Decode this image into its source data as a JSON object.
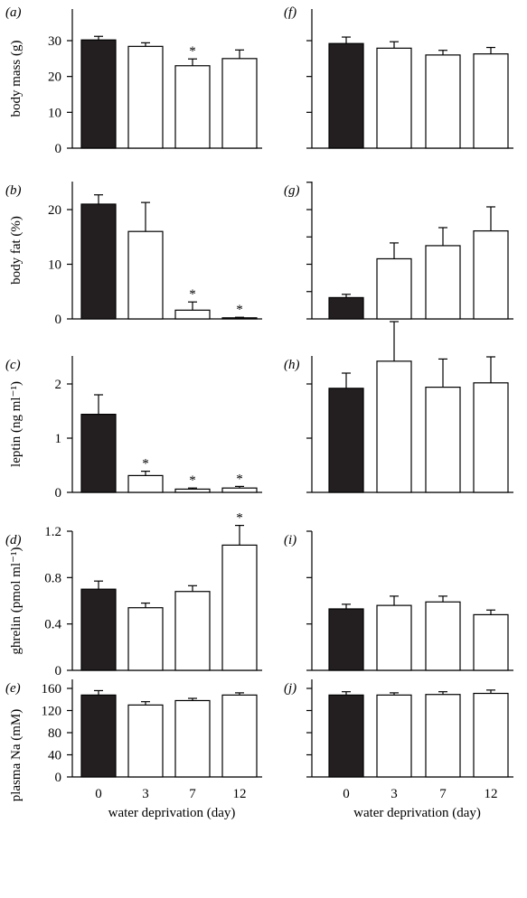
{
  "figure": {
    "xlabel": "water deprivation (day)",
    "categories": [
      "0",
      "3",
      "7",
      "12"
    ],
    "colors": {
      "control": "#231f20",
      "treated": "#ffffff",
      "ink": "#000000"
    }
  },
  "chart_data": [
    {
      "panel": "(a)",
      "type": "bar",
      "ylabel": "body mass (g)",
      "ylim": [
        0,
        35
      ],
      "yticks": [
        0,
        10,
        20,
        30
      ],
      "show_tick_labels": true,
      "categories": [
        "0",
        "3",
        "7",
        "12"
      ],
      "values": [
        30.2,
        28.4,
        23.0,
        25.0
      ],
      "errors": [
        1.0,
        1.0,
        1.9,
        2.4
      ],
      "significant": [
        false,
        false,
        true,
        false
      ]
    },
    {
      "panel": "(f)",
      "type": "bar",
      "ylabel": "",
      "ylim": [
        0,
        35
      ],
      "yticks": [
        0,
        10,
        20,
        30
      ],
      "show_tick_labels": false,
      "categories": [
        "0",
        "3",
        "7",
        "12"
      ],
      "values": [
        29.2,
        27.9,
        26.0,
        26.3
      ],
      "errors": [
        1.8,
        1.8,
        1.3,
        1.8
      ],
      "significant": [
        false,
        false,
        false,
        false
      ]
    },
    {
      "panel": "(b)",
      "type": "bar",
      "ylabel": "body fat (%)",
      "ylim": [
        0,
        25
      ],
      "yticks": [
        0,
        10,
        20
      ],
      "show_tick_labels": true,
      "categories": [
        "0",
        "3",
        "7",
        "12"
      ],
      "values": [
        21.0,
        16.0,
        1.6,
        0.2
      ],
      "errors": [
        1.7,
        5.3,
        1.5,
        0.1
      ],
      "significant": [
        false,
        false,
        true,
        true
      ]
    },
    {
      "panel": "(g)",
      "type": "bar",
      "ylabel": "",
      "ylim": [
        0,
        25
      ],
      "yticks": [
        0,
        5,
        10,
        15,
        20,
        25
      ],
      "show_tick_labels": false,
      "categories": [
        "0",
        "3",
        "7",
        "12"
      ],
      "values": [
        3.9,
        11.0,
        13.4,
        16.1
      ],
      "errors": [
        0.6,
        2.9,
        3.3,
        4.4
      ],
      "significant": [
        false,
        false,
        false,
        false
      ]
    },
    {
      "panel": "(c)",
      "type": "bar",
      "ylabel": "leptin (ng ml⁻¹)",
      "ylim": [
        0,
        2.5
      ],
      "yticks": [
        0,
        1,
        2
      ],
      "show_tick_labels": true,
      "categories": [
        "0",
        "3",
        "7",
        "12"
      ],
      "values": [
        1.44,
        0.31,
        0.06,
        0.08
      ],
      "errors": [
        0.36,
        0.08,
        0.02,
        0.03
      ],
      "significant": [
        false,
        true,
        true,
        true
      ]
    },
    {
      "panel": "(h)",
      "type": "bar",
      "ylabel": "",
      "ylim": [
        0,
        2.5
      ],
      "yticks": [
        0,
        1,
        2
      ],
      "show_tick_labels": false,
      "categories": [
        "0",
        "3",
        "7",
        "12"
      ],
      "values": [
        1.92,
        2.42,
        1.94,
        2.02
      ],
      "errors": [
        0.28,
        0.73,
        0.52,
        0.48
      ],
      "significant": [
        false,
        false,
        false,
        false
      ]
    },
    {
      "panel": "(d)",
      "type": "bar",
      "ylabel": "ghrelin (pmol ml⁻¹)",
      "ylim": [
        0,
        1.2
      ],
      "yticks": [
        0,
        0.4,
        0.8,
        1.2
      ],
      "show_tick_labels": true,
      "categories": [
        "0",
        "3",
        "7",
        "12"
      ],
      "values": [
        0.7,
        0.54,
        0.68,
        1.08
      ],
      "errors": [
        0.07,
        0.04,
        0.05,
        0.17
      ],
      "significant": [
        false,
        false,
        false,
        true
      ]
    },
    {
      "panel": "(i)",
      "type": "bar",
      "ylabel": "",
      "ylim": [
        0,
        1.2
      ],
      "yticks": [
        0,
        0.4,
        0.8,
        1.2
      ],
      "show_tick_labels": false,
      "categories": [
        "0",
        "3",
        "7",
        "12"
      ],
      "values": [
        0.53,
        0.56,
        0.59,
        0.48
      ],
      "errors": [
        0.04,
        0.08,
        0.05,
        0.04
      ],
      "significant": [
        false,
        false,
        false,
        false
      ]
    },
    {
      "panel": "(e)",
      "type": "bar",
      "ylabel": "plasma Na (mM)",
      "ylim": [
        0,
        160
      ],
      "yticks": [
        0,
        40,
        80,
        120,
        160
      ],
      "show_tick_labels": true,
      "categories": [
        "0",
        "3",
        "7",
        "12"
      ],
      "values": [
        148,
        130,
        138,
        148
      ],
      "errors": [
        8,
        6,
        4,
        4
      ],
      "significant": [
        false,
        false,
        false,
        false
      ]
    },
    {
      "panel": "(j)",
      "type": "bar",
      "ylabel": "",
      "ylim": [
        0,
        160
      ],
      "yticks": [
        0,
        40,
        80,
        120,
        160
      ],
      "show_tick_labels": false,
      "categories": [
        "0",
        "3",
        "7",
        "12"
      ],
      "values": [
        148,
        148,
        149,
        151
      ],
      "errors": [
        6,
        4,
        5,
        6
      ],
      "significant": [
        false,
        false,
        false,
        false
      ]
    }
  ]
}
